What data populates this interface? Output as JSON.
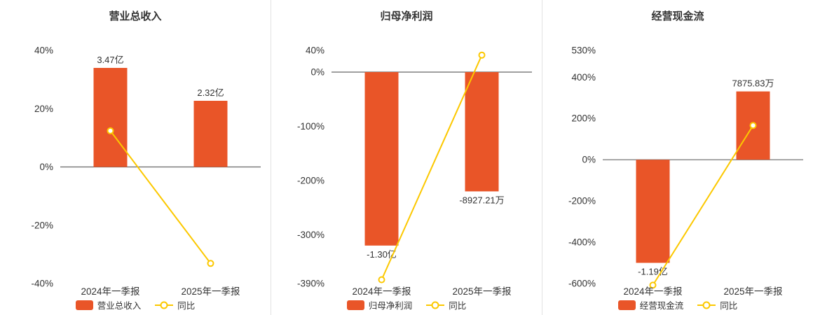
{
  "colors": {
    "bar": "#E95528",
    "line": "#FCC800",
    "axis_text": "#333333",
    "title": "#333333",
    "zero_line": "#666666",
    "divider": "#E2E2E2",
    "background": "#FFFFFF"
  },
  "chart_data": [
    {
      "type": "bar",
      "title": "营业总收入",
      "categories": [
        "2024年一季报",
        "2025年一季报"
      ],
      "bar_series": {
        "name": "营业总收入",
        "value_labels": [
          "3.47亿",
          "2.32亿"
        ],
        "plotted_pct": [
          34,
          22.7
        ]
      },
      "line_series": {
        "name": "同比",
        "type": "line",
        "values_pct": [
          12.4,
          -33.1
        ]
      },
      "y_axis": {
        "ticks": [
          "40%",
          "20%",
          "0%",
          "-20%",
          "-40%"
        ],
        "max": 40,
        "min": -40
      },
      "legend_position": "bottom",
      "grid": false
    },
    {
      "type": "bar",
      "title": "归母净利润",
      "categories": [
        "2024年一季报",
        "2025年一季报"
      ],
      "bar_series": {
        "name": "归母净利润",
        "value_labels": [
          "-1.30亿",
          "-8927.21万"
        ],
        "plotted_pct": [
          -320,
          -220
        ]
      },
      "line_series": {
        "name": "同比",
        "type": "line",
        "values_pct": [
          -383,
          31.3
        ]
      },
      "y_axis": {
        "ticks": [
          "40%",
          "0%",
          "-100%",
          "-200%",
          "-300%",
          "-390%"
        ],
        "max": 40,
        "min": -390
      },
      "legend_position": "bottom",
      "grid": false
    },
    {
      "type": "bar",
      "title": "经营现金流",
      "categories": [
        "2024年一季报",
        "2025年一季报"
      ],
      "bar_series": {
        "name": "经营现金流",
        "value_labels": [
          "-1.19亿",
          "7875.83万"
        ],
        "plotted_pct": [
          -500,
          331
        ]
      },
      "line_series": {
        "name": "同比",
        "type": "line",
        "values_pct": [
          -608,
          166.2
        ]
      },
      "y_axis": {
        "ticks": [
          "530%",
          "400%",
          "200%",
          "0%",
          "-200%",
          "-400%",
          "-600%"
        ],
        "max": 530,
        "min": -600
      },
      "legend_position": "bottom",
      "grid": false
    }
  ]
}
